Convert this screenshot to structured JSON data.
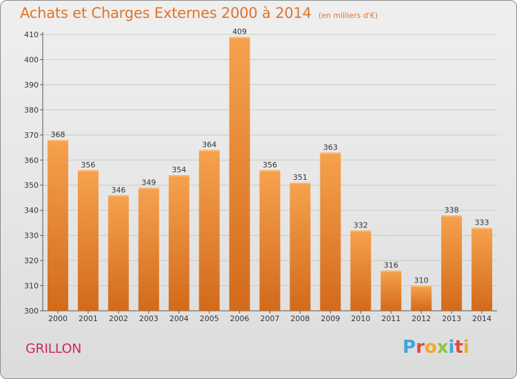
{
  "header": {
    "title": "Achats et Charges Externes 2000 à 2014",
    "unit": "(en milliers d'€)"
  },
  "footer": {
    "place": "GRILLON",
    "logo_letters": [
      "P",
      "r",
      "o",
      "x",
      "i",
      "t",
      "i"
    ],
    "logo_colors": [
      "#3aa8df",
      "#e24b3f",
      "#f1a82c",
      "#8ec63f",
      "#3aa8df",
      "#e24b3f",
      "#f1a82c"
    ]
  },
  "colors": {
    "bar_top": "#f6a24e",
    "bar_bottom": "#d26a1a",
    "grid": "#c9c9c9",
    "axis": "#555555"
  },
  "chart_data": {
    "type": "bar",
    "title": "Achats et Charges Externes 2000 à 2014",
    "subtitle": "(en milliers d'€)",
    "categories": [
      "2000",
      "2001",
      "2002",
      "2003",
      "2004",
      "2005",
      "2006",
      "2007",
      "2008",
      "2009",
      "2010",
      "2011",
      "2012",
      "2013",
      "2014"
    ],
    "values": [
      368,
      356,
      346,
      349,
      354,
      364,
      409,
      356,
      351,
      363,
      332,
      316,
      310,
      338,
      333
    ],
    "ylim": [
      300,
      410
    ],
    "yticks": [
      300,
      310,
      320,
      330,
      340,
      350,
      360,
      370,
      380,
      390,
      400,
      410
    ],
    "grid": true,
    "legend": "none"
  }
}
